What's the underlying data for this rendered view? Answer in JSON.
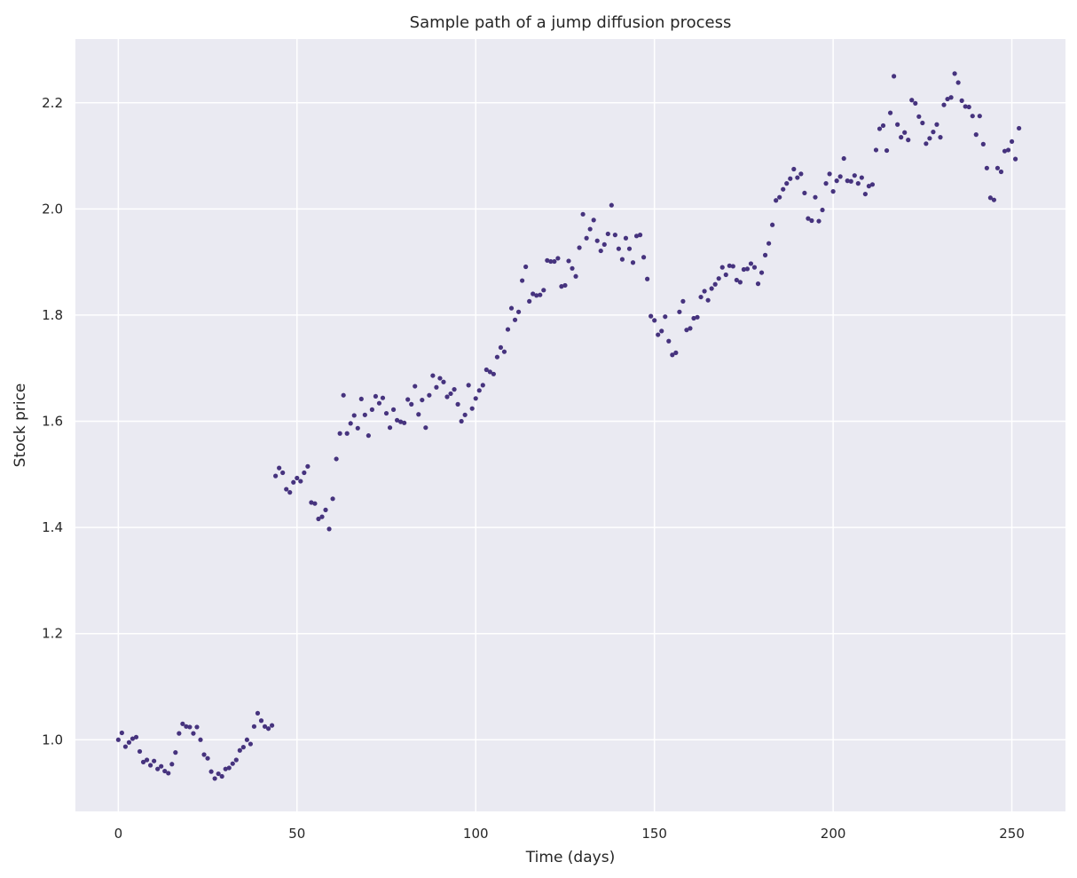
{
  "chart_data": {
    "type": "scatter",
    "title": "Sample path of a jump diffusion process",
    "xlabel": "Time (days)",
    "ylabel": "Stock price",
    "xlim": [
      -12,
      265
    ],
    "ylim": [
      0.865,
      2.32
    ],
    "xticks": [
      0,
      50,
      100,
      150,
      200,
      250
    ],
    "yticks": [
      1.0,
      1.2,
      1.4,
      1.6,
      1.8,
      2.0,
      2.2
    ],
    "grid": true,
    "legend": "none",
    "colors": {
      "background": "#eaeaf2",
      "grid": "#ffffff",
      "marker": "#46337e"
    },
    "series": [
      {
        "x": [
          0,
          1,
          2,
          3,
          4,
          5,
          6,
          7,
          8,
          9,
          10,
          11,
          12,
          13,
          14,
          15,
          16,
          17,
          18,
          19,
          20,
          21,
          22,
          23,
          24,
          25,
          26,
          27,
          28,
          29,
          30,
          31,
          32,
          33,
          34,
          35,
          36,
          37,
          38,
          39,
          40,
          41,
          42,
          43,
          44,
          45,
          46,
          47,
          48,
          49,
          50,
          51,
          52,
          53,
          54,
          55,
          56,
          57,
          58,
          59,
          60,
          61,
          62,
          63,
          64,
          65,
          66,
          67,
          68,
          69,
          70,
          71,
          72,
          73,
          74,
          75,
          76,
          77,
          78,
          79,
          80,
          81,
          82,
          83,
          84,
          85,
          86,
          87,
          88,
          89,
          90,
          91,
          92,
          93,
          94,
          95,
          96,
          97,
          98,
          99,
          100,
          101,
          102,
          103,
          104,
          105,
          106,
          107,
          108,
          109,
          110,
          111,
          112,
          113,
          114,
          115,
          116,
          117,
          118,
          119,
          120,
          121,
          122,
          123,
          124,
          125,
          126,
          127,
          128,
          129,
          130,
          131,
          132,
          133,
          134,
          135,
          136,
          137,
          138,
          139,
          140,
          141,
          142,
          143,
          144,
          145,
          146,
          147,
          148,
          149,
          150,
          151,
          152,
          153,
          154,
          155,
          156,
          157,
          158,
          159,
          160,
          161,
          162,
          163,
          164,
          165,
          166,
          167,
          168,
          169,
          170,
          171,
          172,
          173,
          174,
          175,
          176,
          177,
          178,
          179,
          180,
          181,
          182,
          183,
          184,
          185,
          186,
          187,
          188,
          189,
          190,
          191,
          192,
          193,
          194,
          195,
          196,
          197,
          198,
          199,
          200,
          201,
          202,
          203,
          204,
          205,
          206,
          207,
          208,
          209,
          210,
          211,
          212,
          213,
          214,
          215,
          216,
          217,
          218,
          219,
          220,
          221,
          222,
          223,
          224,
          225,
          226,
          227,
          228,
          229,
          230,
          231,
          232,
          233,
          234,
          235,
          236,
          237,
          238,
          239,
          240,
          241,
          242,
          243,
          244,
          245,
          246,
          247,
          248,
          249,
          250,
          251,
          252
        ],
        "y": [
          1.0,
          1.013,
          0.987,
          0.995,
          1.002,
          1.005,
          0.978,
          0.958,
          0.962,
          0.952,
          0.96,
          0.945,
          0.95,
          0.941,
          0.937,
          0.954,
          0.976,
          1.012,
          1.03,
          1.025,
          1.024,
          1.012,
          1.024,
          1.0,
          0.972,
          0.965,
          0.94,
          0.927,
          0.936,
          0.931,
          0.945,
          0.947,
          0.955,
          0.962,
          0.98,
          0.986,
          1.0,
          0.992,
          1.025,
          1.05,
          1.036,
          1.025,
          1.021,
          1.027,
          1.497,
          1.512,
          1.503,
          1.472,
          1.466,
          1.485,
          1.493,
          1.487,
          1.503,
          1.515,
          1.447,
          1.445,
          1.416,
          1.42,
          1.433,
          1.397,
          1.454,
          1.529,
          1.577,
          1.649,
          1.577,
          1.596,
          1.611,
          1.587,
          1.642,
          1.612,
          1.573,
          1.622,
          1.647,
          1.634,
          1.644,
          1.615,
          1.588,
          1.622,
          1.602,
          1.599,
          1.597,
          1.641,
          1.632,
          1.666,
          1.613,
          1.64,
          1.588,
          1.649,
          1.686,
          1.664,
          1.681,
          1.674,
          1.646,
          1.652,
          1.66,
          1.632,
          1.6,
          1.612,
          1.668,
          1.624,
          1.643,
          1.658,
          1.668,
          1.697,
          1.693,
          1.689,
          1.721,
          1.739,
          1.731,
          1.773,
          1.813,
          1.791,
          1.806,
          1.865,
          1.891,
          1.826,
          1.84,
          1.837,
          1.838,
          1.847,
          1.903,
          1.901,
          1.901,
          1.907,
          1.854,
          1.856,
          1.902,
          1.888,
          1.873,
          1.927,
          1.99,
          1.945,
          1.962,
          1.979,
          1.94,
          1.921,
          1.933,
          1.953,
          2.007,
          1.951,
          1.925,
          1.905,
          1.945,
          1.925,
          1.899,
          1.949,
          1.951,
          1.909,
          1.868,
          1.798,
          1.79,
          1.763,
          1.77,
          1.797,
          1.751,
          1.725,
          1.729,
          1.806,
          1.826,
          1.772,
          1.775,
          1.794,
          1.796,
          1.834,
          1.845,
          1.828,
          1.85,
          1.858,
          1.869,
          1.89,
          1.876,
          1.893,
          1.892,
          1.866,
          1.862,
          1.886,
          1.887,
          1.897,
          1.89,
          1.859,
          1.88,
          1.913,
          1.935,
          1.97,
          2.016,
          2.022,
          2.037,
          2.048,
          2.057,
          2.075,
          2.059,
          2.066,
          2.03,
          1.982,
          1.978,
          2.022,
          1.977,
          1.998,
          2.048,
          2.066,
          2.033,
          2.053,
          2.061,
          2.095,
          2.053,
          2.052,
          2.063,
          2.048,
          2.059,
          2.028,
          2.043,
          2.046,
          2.111,
          2.151,
          2.157,
          2.11,
          2.181,
          2.25,
          2.159,
          2.135,
          2.144,
          2.13,
          2.205,
          2.199,
          2.174,
          2.162,
          2.123,
          2.133,
          2.145,
          2.159,
          2.135,
          2.196,
          2.207,
          2.21,
          2.255,
          2.238,
          2.204,
          2.193,
          2.192,
          2.175,
          2.14,
          2.175,
          2.122,
          2.077,
          2.021,
          2.017,
          2.077,
          2.07,
          2.109,
          2.111,
          2.127,
          2.094,
          2.152
        ]
      }
    ]
  }
}
